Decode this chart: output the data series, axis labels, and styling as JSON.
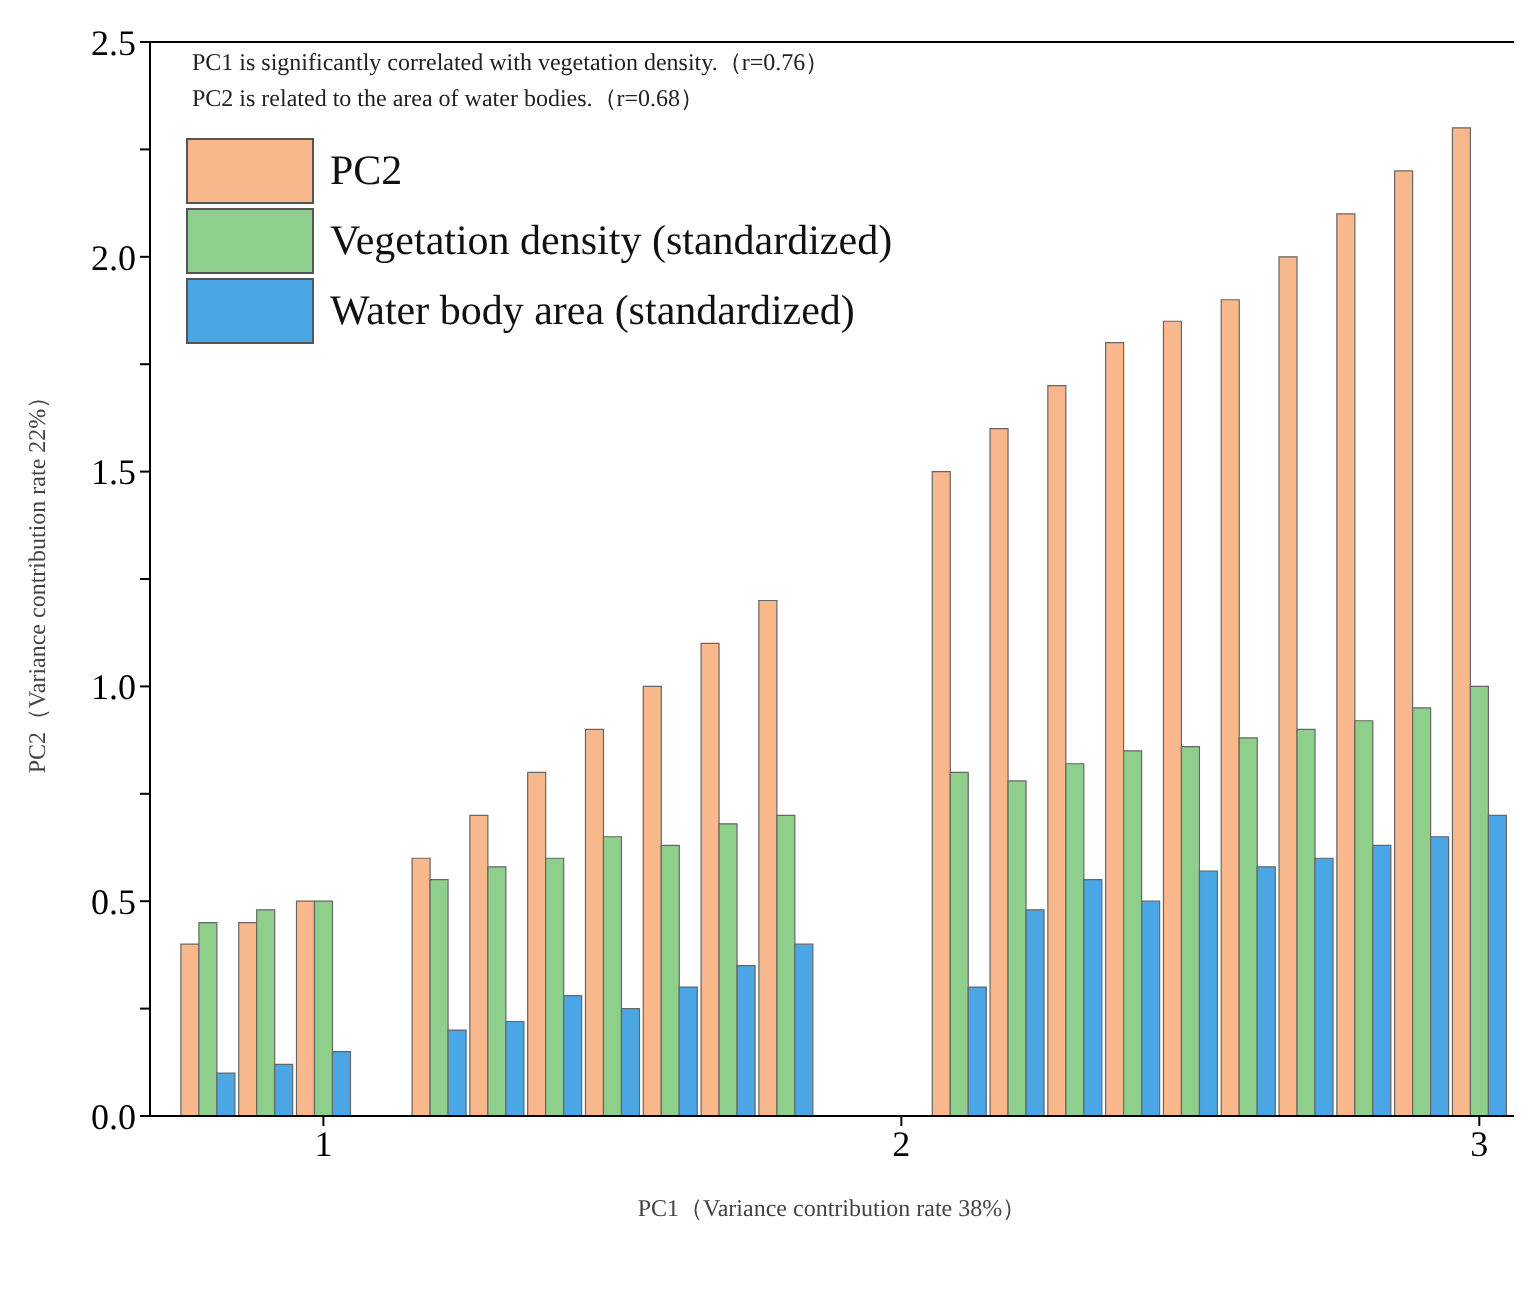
{
  "chart_data": {
    "type": "bar",
    "xlabel": "PC1（Variance contribution rate 38%）",
    "ylabel": "PC2（Variance contribution rate 22%）",
    "annotations": [
      "PC1 is significantly correlated with vegetation density.（r=0.76）",
      "PC2 is related to the area of water bodies.（r=0.68）"
    ],
    "x": [
      0.8,
      0.9,
      1.0,
      1.2,
      1.3,
      1.4,
      1.5,
      1.6,
      1.7,
      1.8,
      2.1,
      2.2,
      2.3,
      2.4,
      2.5,
      2.6,
      2.7,
      2.8,
      2.9,
      3.0
    ],
    "series": [
      {
        "name": "PC2",
        "color": "#f8b88c",
        "values": [
          0.4,
          0.45,
          0.5,
          0.6,
          0.7,
          0.8,
          0.9,
          1.0,
          1.1,
          1.2,
          1.5,
          1.6,
          1.7,
          1.8,
          1.85,
          1.9,
          2.0,
          2.1,
          2.2,
          2.3
        ]
      },
      {
        "name": "Vegetation density (standardized)",
        "color": "#8fcf8c",
        "values": [
          0.45,
          0.48,
          0.5,
          0.55,
          0.58,
          0.6,
          0.65,
          0.63,
          0.68,
          0.7,
          0.8,
          0.78,
          0.82,
          0.85,
          0.86,
          0.88,
          0.9,
          0.92,
          0.95,
          1.0
        ]
      },
      {
        "name": "Water body area (standardized)",
        "color": "#4ba6e6",
        "values": [
          0.1,
          0.12,
          0.15,
          0.2,
          0.22,
          0.28,
          0.25,
          0.3,
          0.35,
          0.4,
          0.3,
          0.48,
          0.55,
          0.5,
          0.57,
          0.58,
          0.6,
          0.63,
          0.65,
          0.7
        ]
      }
    ],
    "xlim": [
      0.7,
      3.06
    ],
    "xticks": [
      1,
      2,
      3
    ],
    "ylim": [
      0,
      2.5
    ],
    "yticks": [
      {
        "value": 0,
        "label": "0.0"
      },
      {
        "value": 0.25,
        "label": null
      },
      {
        "value": 0.5,
        "label": "0.5"
      },
      {
        "value": 0.75,
        "label": null
      },
      {
        "value": 1,
        "label": "1.0"
      },
      {
        "value": 1.25,
        "label": null
      },
      {
        "value": 1.5,
        "label": "1.5"
      },
      {
        "value": 1.75,
        "label": null
      },
      {
        "value": 2,
        "label": "2.0"
      },
      {
        "value": 2.25,
        "label": null
      },
      {
        "value": 2.5,
        "label": "2.5"
      }
    ],
    "grid": false,
    "legend": "top left"
  }
}
